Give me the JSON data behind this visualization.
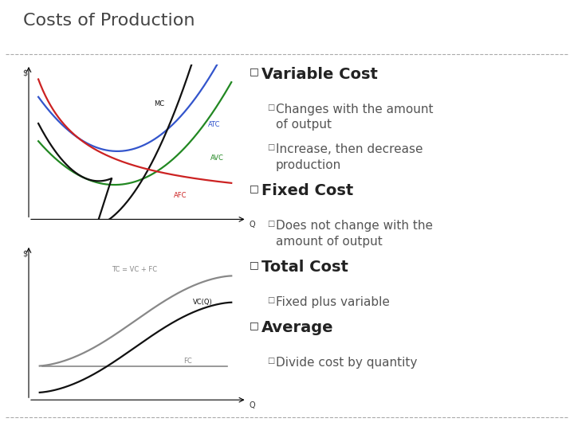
{
  "title": "Costs of Production",
  "title_color": "#444444",
  "title_fontsize": 16,
  "bg_color": "#ffffff",
  "dashed_line_color": "#aaaaaa",
  "bullet_l1": "□",
  "bullet_l2": "□",
  "level1_color": "#222222",
  "level2_color": "#555555",
  "level1_fontsize": 14,
  "level2_fontsize": 11,
  "items": [
    {
      "level": 1,
      "text": "Variable Cost"
    },
    {
      "level": 2,
      "text": "Changes with the amount\nof output"
    },
    {
      "level": 2,
      "text": "Increase, then decrease\nproduction"
    },
    {
      "level": 1,
      "text": "Fixed Cost"
    },
    {
      "level": 2,
      "text": "Does not change with the\namount of output"
    },
    {
      "level": 1,
      "text": "Total Cost"
    },
    {
      "level": 2,
      "text": "Fixed plus variable"
    },
    {
      "level": 1,
      "text": "Average"
    },
    {
      "level": 2,
      "text": "Divide cost by quantity"
    }
  ],
  "top_chart": {
    "mc_color": "#111111",
    "atc_color": "#3355cc",
    "avc_color": "#228822",
    "afc_color": "#cc2222",
    "label_mc": "MC",
    "label_atc": "ATC",
    "label_avc": "AVC",
    "label_afc": "AFC",
    "xlabel": "Q",
    "ylabel": "$"
  },
  "bottom_chart": {
    "tc_color": "#888888",
    "vc_color": "#111111",
    "fc_color": "#888888",
    "label_tc": "TC = VC + FC",
    "label_vc": "VC(Q)",
    "label_fc": "FC",
    "xlabel": "Q",
    "ylabel": "$"
  }
}
